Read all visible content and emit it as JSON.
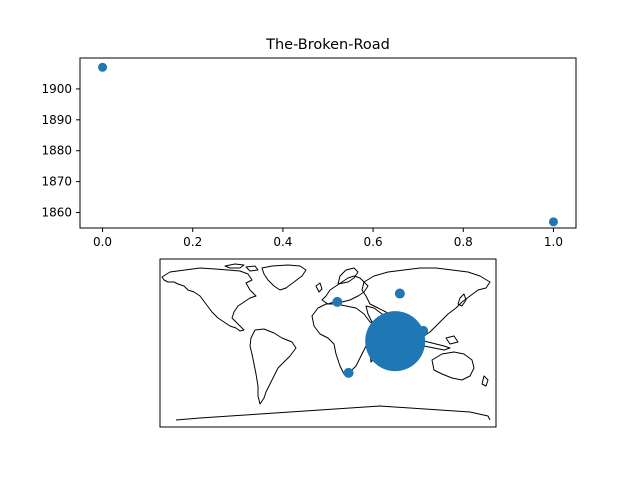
{
  "chart_data": [
    {
      "type": "scatter",
      "title": "The-Broken-Road",
      "xlabel": "",
      "ylabel": "",
      "xlim": [
        -0.05,
        1.05
      ],
      "ylim": [
        1855,
        1910
      ],
      "xticks": [
        0.0,
        0.2,
        0.4,
        0.6,
        0.8,
        1.0
      ],
      "xtick_labels": [
        "0.0",
        "0.2",
        "0.4",
        "0.6",
        "0.8",
        "1.0"
      ],
      "yticks": [
        1860,
        1870,
        1880,
        1890,
        1900
      ],
      "ytick_labels": [
        "1860",
        "1870",
        "1880",
        "1890",
        "1900"
      ],
      "points": [
        {
          "x": 0.0,
          "y": 1907
        },
        {
          "x": 1.0,
          "y": 1857
        }
      ],
      "color": "#1f77b4",
      "grid": false
    },
    {
      "type": "scatter",
      "map": "world-coastlines",
      "projection": "equirectangular",
      "lon_range": [
        -180,
        180
      ],
      "lat_range": [
        -90,
        90
      ],
      "color": "#1f77b4",
      "points": [
        {
          "lon": 10,
          "lat": 44,
          "size": "small"
        },
        {
          "lon": 77,
          "lat": 53,
          "size": "small"
        },
        {
          "lon": 72,
          "lat": 2,
          "size": "large"
        },
        {
          "lon": 102,
          "lat": 13,
          "size": "small"
        },
        {
          "lon": 22,
          "lat": -32,
          "size": "small"
        }
      ]
    }
  ]
}
